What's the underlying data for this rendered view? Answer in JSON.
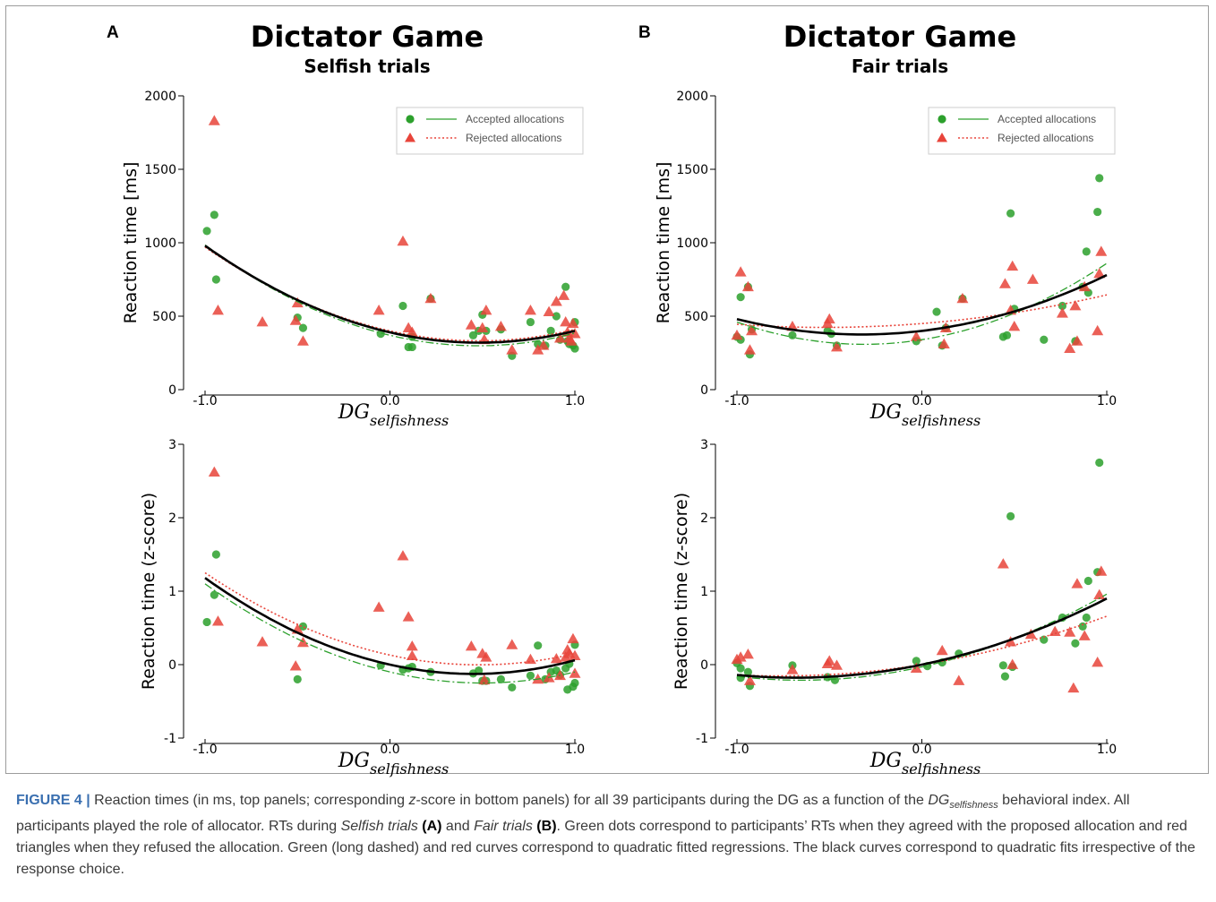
{
  "panels": [
    {
      "letter": "A",
      "title": "Dictator Game",
      "subtitle": "Selfish trials"
    },
    {
      "letter": "B",
      "title": "Dictator Game",
      "subtitle": "Fair trials"
    }
  ],
  "legend": {
    "accepted": "Accepted allocations",
    "rejected": "Rejected allocations"
  },
  "axis_text": {
    "ylabel_top": "Reaction time [ms]",
    "ylabel_bottom": "Reaction time (z-score)",
    "xlabel_main": "DG",
    "xlabel_sub": "selfishness"
  },
  "colors": {
    "accepted": "#2ca02c",
    "rejected": "#e8443a",
    "overall": "#000000"
  },
  "chart_data": [
    {
      "panel": "A",
      "type": "scatter",
      "title": "Dictator Game",
      "subtitle": "Selfish trials",
      "xlabel": "DG_selfishness",
      "ylabel": "Reaction time [ms]",
      "xlim": [
        -1.05,
        1.05
      ],
      "ylim": [
        0,
        2000
      ],
      "xticks": [
        "-1.0",
        "0.0",
        "1.0"
      ],
      "yticks": [
        "0",
        "500",
        "1000",
        "1500",
        "2000"
      ],
      "series": [
        {
          "name": "Accepted allocations",
          "marker": "circle",
          "points": [
            [
              -0.99,
              1080
            ],
            [
              -0.95,
              1190
            ],
            [
              -0.94,
              750
            ],
            [
              -0.5,
              490
            ],
            [
              -0.47,
              420
            ],
            [
              -0.05,
              380
            ],
            [
              0.07,
              570
            ],
            [
              0.1,
              290
            ],
            [
              0.12,
              290
            ],
            [
              0.12,
              360
            ],
            [
              0.22,
              620
            ],
            [
              0.45,
              370
            ],
            [
              0.48,
              400
            ],
            [
              0.5,
              510
            ],
            [
              0.52,
              400
            ],
            [
              0.6,
              410
            ],
            [
              0.66,
              230
            ],
            [
              0.76,
              460
            ],
            [
              0.8,
              310
            ],
            [
              0.84,
              300
            ],
            [
              0.87,
              400
            ],
            [
              0.9,
              500
            ],
            [
              0.92,
              340
            ],
            [
              0.95,
              700
            ],
            [
              0.96,
              330
            ],
            [
              0.97,
              310
            ],
            [
              0.99,
              300
            ],
            [
              1.0,
              460
            ],
            [
              1.0,
              280
            ]
          ]
        },
        {
          "name": "Rejected allocations",
          "marker": "triangle",
          "points": [
            [
              -0.95,
              1830
            ],
            [
              -0.93,
              540
            ],
            [
              -0.69,
              460
            ],
            [
              -0.51,
              470
            ],
            [
              -0.5,
              590
            ],
            [
              -0.47,
              330
            ],
            [
              -0.06,
              540
            ],
            [
              0.07,
              1010
            ],
            [
              0.1,
              420
            ],
            [
              0.12,
              390
            ],
            [
              0.22,
              620
            ],
            [
              0.44,
              440
            ],
            [
              0.5,
              420
            ],
            [
              0.51,
              340
            ],
            [
              0.52,
              540
            ],
            [
              0.6,
              430
            ],
            [
              0.66,
              270
            ],
            [
              0.76,
              540
            ],
            [
              0.8,
              270
            ],
            [
              0.83,
              300
            ],
            [
              0.86,
              530
            ],
            [
              0.9,
              600
            ],
            [
              0.92,
              350
            ],
            [
              0.94,
              640
            ],
            [
              0.95,
              460
            ],
            [
              0.96,
              390
            ],
            [
              0.97,
              350
            ],
            [
              0.98,
              330
            ],
            [
              0.99,
              450
            ],
            [
              1.0,
              380
            ]
          ]
        }
      ],
      "fits": {
        "overall": [
          305,
          15,
          500
        ],
        "accepted": [
          290,
          10,
          470
        ],
        "rejected": [
          315,
          20,
          520
        ]
      }
    },
    {
      "panel": "B",
      "type": "scatter",
      "title": "Dictator Game",
      "subtitle": "Fair trials",
      "xlabel": "DG_selfishness",
      "ylabel": "Reaction time [ms]",
      "xlim": [
        -1.05,
        1.05
      ],
      "ylim": [
        0,
        2000
      ],
      "xticks": [
        "-1.0",
        "0.0",
        "1.0"
      ],
      "yticks": [
        "0",
        "500",
        "1000",
        "1500",
        "2000"
      ],
      "series": [
        {
          "name": "Accepted allocations",
          "marker": "circle",
          "points": [
            [
              -1.0,
              360
            ],
            [
              -0.98,
              340
            ],
            [
              -0.98,
              630
            ],
            [
              -0.94,
              700
            ],
            [
              -0.92,
              410
            ],
            [
              -0.93,
              240
            ],
            [
              -0.7,
              370
            ],
            [
              -0.51,
              400
            ],
            [
              -0.49,
              380
            ],
            [
              -0.46,
              300
            ],
            [
              -0.03,
              330
            ],
            [
              0.08,
              530
            ],
            [
              0.11,
              300
            ],
            [
              0.13,
              420
            ],
            [
              0.22,
              620
            ],
            [
              0.44,
              360
            ],
            [
              0.46,
              370
            ],
            [
              0.48,
              1200
            ],
            [
              0.5,
              550
            ],
            [
              0.66,
              340
            ],
            [
              0.76,
              570
            ],
            [
              0.83,
              330
            ],
            [
              0.87,
              700
            ],
            [
              0.89,
              940
            ],
            [
              0.9,
              660
            ],
            [
              0.95,
              1210
            ],
            [
              0.96,
              1440
            ]
          ]
        },
        {
          "name": "Rejected allocations",
          "marker": "triangle",
          "points": [
            [
              -1.0,
              370
            ],
            [
              -0.98,
              800
            ],
            [
              -0.94,
              700
            ],
            [
              -0.93,
              270
            ],
            [
              -0.92,
              400
            ],
            [
              -0.7,
              430
            ],
            [
              -0.51,
              450
            ],
            [
              -0.5,
              480
            ],
            [
              -0.46,
              290
            ],
            [
              -0.03,
              360
            ],
            [
              0.12,
              310
            ],
            [
              0.13,
              420
            ],
            [
              0.22,
              620
            ],
            [
              0.45,
              720
            ],
            [
              0.48,
              540
            ],
            [
              0.49,
              840
            ],
            [
              0.5,
              430
            ],
            [
              0.6,
              750
            ],
            [
              0.76,
              520
            ],
            [
              0.8,
              280
            ],
            [
              0.83,
              570
            ],
            [
              0.84,
              330
            ],
            [
              0.88,
              700
            ],
            [
              0.95,
              400
            ],
            [
              0.96,
              790
            ],
            [
              0.97,
              940
            ]
          ]
        }
      ],
      "fits": {
        "overall": [
          210,
          150,
          400
        ],
        "accepted": [
          300,
          220,
          380
        ],
        "rejected": [
          100,
          80,
          460
        ]
      }
    },
    {
      "panel": "A",
      "type": "scatter",
      "xlabel": "DG_selfishness",
      "ylabel": "Reaction time (z-score)",
      "xlim": [
        -1.05,
        1.05
      ],
      "ylim": [
        -1,
        3
      ],
      "xticks": [
        "-1.0",
        "0.0",
        "1.0"
      ],
      "yticks": [
        "-1",
        "0",
        "1",
        "2",
        "3"
      ],
      "series": [
        {
          "name": "Accepted allocations",
          "marker": "circle",
          "points": [
            [
              -0.99,
              0.58
            ],
            [
              -0.95,
              0.95
            ],
            [
              -0.94,
              1.5
            ],
            [
              -0.5,
              -0.2
            ],
            [
              -0.47,
              0.52
            ],
            [
              -0.05,
              -0.01
            ],
            [
              0.07,
              -0.07
            ],
            [
              0.1,
              -0.05
            ],
            [
              0.12,
              -0.03
            ],
            [
              0.22,
              -0.1
            ],
            [
              0.45,
              -0.12
            ],
            [
              0.48,
              -0.08
            ],
            [
              0.5,
              -0.22
            ],
            [
              0.52,
              -0.22
            ],
            [
              0.6,
              -0.2
            ],
            [
              0.66,
              -0.31
            ],
            [
              0.76,
              -0.15
            ],
            [
              0.8,
              0.26
            ],
            [
              0.84,
              -0.2
            ],
            [
              0.87,
              -0.1
            ],
            [
              0.9,
              -0.08
            ],
            [
              0.92,
              -0.14
            ],
            [
              0.95,
              -0.05
            ],
            [
              0.96,
              -0.34
            ],
            [
              0.97,
              0.01
            ],
            [
              0.99,
              -0.3
            ],
            [
              1.0,
              0.27
            ],
            [
              1.0,
              -0.25
            ]
          ]
        },
        {
          "name": "Rejected allocations",
          "marker": "triangle",
          "points": [
            [
              -0.95,
              2.62
            ],
            [
              -0.93,
              0.59
            ],
            [
              -0.69,
              0.31
            ],
            [
              -0.51,
              -0.02
            ],
            [
              -0.5,
              0.48
            ],
            [
              -0.47,
              0.3
            ],
            [
              -0.06,
              0.78
            ],
            [
              0.07,
              1.48
            ],
            [
              0.1,
              0.65
            ],
            [
              0.12,
              0.25
            ],
            [
              0.12,
              0.12
            ],
            [
              0.44,
              0.25
            ],
            [
              0.5,
              0.15
            ],
            [
              0.51,
              -0.21
            ],
            [
              0.52,
              0.1
            ],
            [
              0.66,
              0.27
            ],
            [
              0.76,
              0.07
            ],
            [
              0.8,
              -0.2
            ],
            [
              0.86,
              -0.18
            ],
            [
              0.9,
              0.08
            ],
            [
              0.92,
              -0.15
            ],
            [
              0.95,
              0.1
            ],
            [
              0.96,
              0.2
            ],
            [
              0.97,
              0.15
            ],
            [
              0.99,
              0.35
            ],
            [
              1.0,
              0.12
            ],
            [
              1.0,
              -0.12
            ]
          ]
        }
      ],
      "fits": {
        "overall": [
          0.62,
          0.05,
          0.45
        ],
        "accepted": [
          0.58,
          0.0,
          0.42
        ],
        "rejected": [
          0.56,
          0.06,
          0.6
        ]
      }
    },
    {
      "panel": "B",
      "type": "scatter",
      "xlabel": "DG_selfishness",
      "ylabel": "Reaction time (z-score)",
      "xlim": [
        -1.05,
        1.05
      ],
      "ylim": [
        -1,
        3
      ],
      "xticks": [
        "-1.0",
        "0.0",
        "1.0"
      ],
      "yticks": [
        "-1",
        "0",
        "1",
        "2",
        "3"
      ],
      "series": [
        {
          "name": "Accepted allocations",
          "marker": "circle",
          "points": [
            [
              -1.0,
              0.02
            ],
            [
              -0.98,
              -0.05
            ],
            [
              -0.98,
              -0.18
            ],
            [
              -0.94,
              -0.1
            ],
            [
              -0.93,
              -0.29
            ],
            [
              -0.7,
              -0.01
            ],
            [
              -0.51,
              -0.17
            ],
            [
              -0.47,
              -0.21
            ],
            [
              -0.03,
              0.05
            ],
            [
              0.03,
              -0.02
            ],
            [
              0.11,
              0.03
            ],
            [
              0.2,
              0.15
            ],
            [
              0.44,
              -0.01
            ],
            [
              0.45,
              -0.16
            ],
            [
              0.48,
              2.02
            ],
            [
              0.49,
              -0.03
            ],
            [
              0.66,
              0.34
            ],
            [
              0.76,
              0.64
            ],
            [
              0.83,
              0.29
            ],
            [
              0.87,
              0.52
            ],
            [
              0.89,
              0.64
            ],
            [
              0.9,
              1.14
            ],
            [
              0.95,
              1.26
            ],
            [
              0.96,
              2.75
            ]
          ]
        },
        {
          "name": "Rejected allocations",
          "marker": "triangle",
          "points": [
            [
              -1.0,
              0.07
            ],
            [
              -0.98,
              0.1
            ],
            [
              -0.94,
              0.14
            ],
            [
              -0.93,
              -0.22
            ],
            [
              -0.7,
              -0.07
            ],
            [
              -0.51,
              0.01
            ],
            [
              -0.5,
              0.05
            ],
            [
              -0.46,
              -0.01
            ],
            [
              -0.03,
              -0.05
            ],
            [
              0.11,
              0.19
            ],
            [
              0.2,
              -0.22
            ],
            [
              0.44,
              1.37
            ],
            [
              0.48,
              0.31
            ],
            [
              0.49,
              0.0
            ],
            [
              0.59,
              0.41
            ],
            [
              0.72,
              0.45
            ],
            [
              0.8,
              0.44
            ],
            [
              0.82,
              -0.32
            ],
            [
              0.84,
              1.1
            ],
            [
              0.88,
              0.39
            ],
            [
              0.95,
              0.03
            ],
            [
              0.96,
              0.95
            ],
            [
              0.97,
              1.27
            ]
          ]
        }
      ],
      "fits": {
        "overall": [
          0.38,
          0.52,
          0.0
        ],
        "accepted": [
          0.43,
          0.58,
          -0.01
        ],
        "rejected": [
          0.26,
          0.4,
          0.02
        ]
      }
    }
  ],
  "caption": {
    "lead": "FIGURE 4 |",
    "t1": " Reaction times (in ms, top panels; corresponding ",
    "z": "z",
    "t2": "-score in bottom panels) for all 39 participants during the DG as a function of the ",
    "dg": "DG",
    "dgsub": "selfishness",
    "t3": " behavioral index. All participants played the role of allocator. RTs during ",
    "selfish": "Selfish trials",
    "paneA": " (A)",
    "and": " and ",
    "fair": "Fair trials",
    "paneB": " (B)",
    "t4": ". Green dots correspond to participants’ RTs when they agreed with the proposed allocation and red triangles when they refused the allocation. Green (long dashed) and red curves correspond to quadratic fitted regressions. The black curves correspond to quadratic fits irrespective of the response choice."
  }
}
